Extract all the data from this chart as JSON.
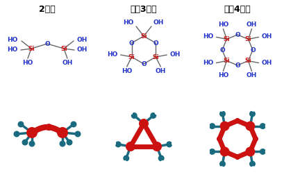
{
  "title_dimer": "2量体",
  "title_trimer": "環犴3量体",
  "title_tetramer": "環犴4量体",
  "si_color": "#cc1111",
  "o_color": "#2233cc",
  "bond_color": "#666666",
  "title_fontsize": 9,
  "label_fontsize": 6.5,
  "background": "#ffffff",
  "teal": "#1a6b80",
  "red_3d": "#cc1111",
  "white_h": "#ffffff"
}
